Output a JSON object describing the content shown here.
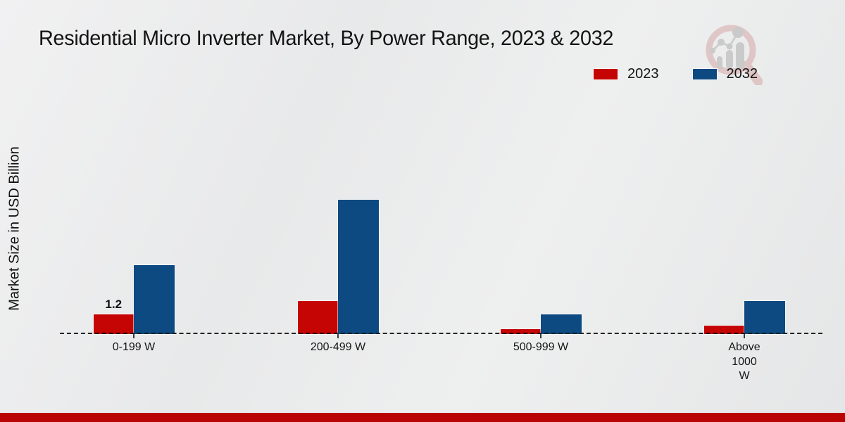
{
  "title": "Residential Micro Inverter Market, By Power Range, 2023 & 2032",
  "y_axis_label": "Market Size in USD Billion",
  "legend": {
    "position": "top-right",
    "items": [
      {
        "label": "2023",
        "color": "#c50404"
      },
      {
        "label": "2032",
        "color": "#0d4a82"
      }
    ]
  },
  "colors": {
    "series_2023": "#c50404",
    "series_2032": "#0d4a82",
    "bottom_band": "#ba0303",
    "background": "#e9eaeb",
    "axis_dash": "#222222",
    "text": "#141414",
    "watermark_ring": "#d4a2a2",
    "watermark_inner": "#a9a9a9"
  },
  "watermark": {
    "name": "magnifier-bar-chart-logo"
  },
  "chart_data": {
    "type": "bar",
    "title": "Residential Micro Inverter Market, By Power Range, 2023 & 2032",
    "xlabel": "",
    "ylabel": "Market Size in USD Billion",
    "categories": [
      "0-199 W",
      "200-499 W",
      "500-999 W",
      "Above 1000 W"
    ],
    "category_display": [
      "0-199 W",
      "200-499 W",
      "500-999 W",
      "Above\n1000\nW"
    ],
    "series": [
      {
        "name": "2023",
        "color": "#c50404",
        "values": [
          1.2,
          2.0,
          0.3,
          0.5
        ]
      },
      {
        "name": "2032",
        "color": "#0d4a82",
        "values": [
          4.2,
          8.2,
          1.2,
          2.0
        ]
      }
    ],
    "data_labels": [
      {
        "series_index": 0,
        "category_index": 0,
        "text": "1.2"
      }
    ],
    "ylim": [
      0,
      9
    ],
    "grid": false,
    "y_tick_labels_shown": false,
    "legend_position": "top-right"
  }
}
